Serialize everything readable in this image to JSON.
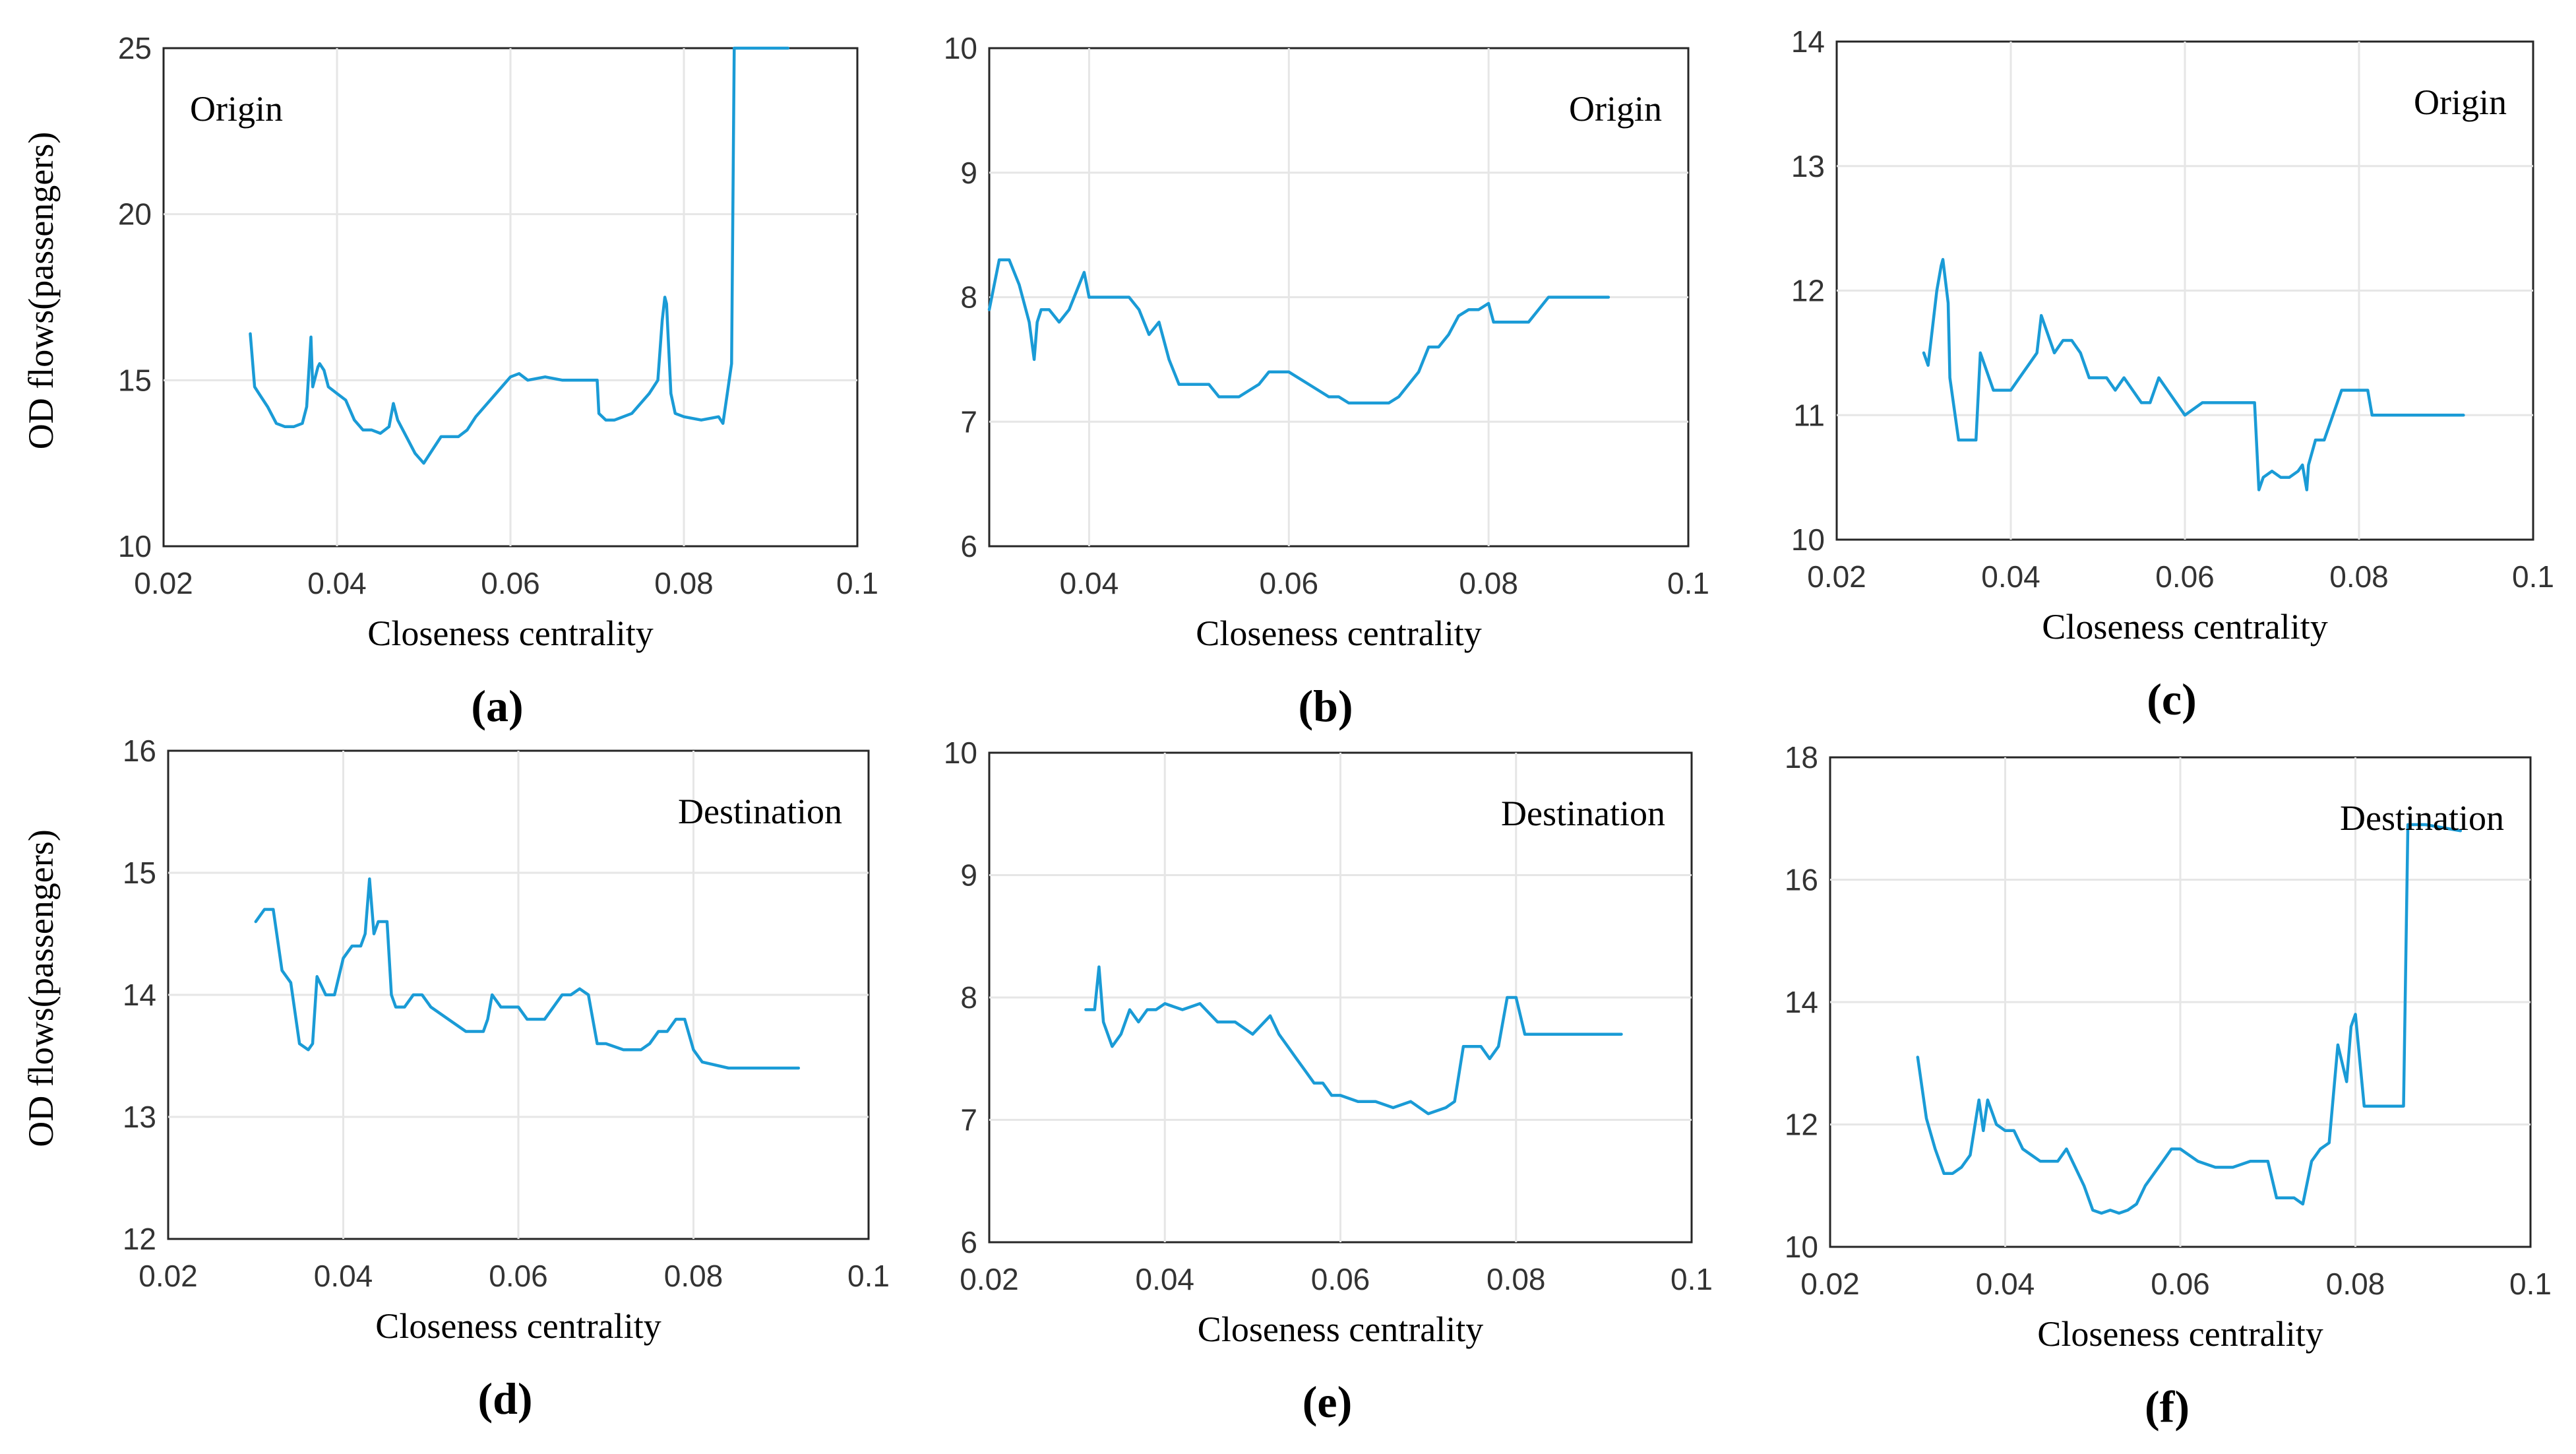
{
  "line_color": "#1a9bd6",
  "chart_data": [
    {
      "panel_label": "(a)",
      "type": "line",
      "annotation": "Origin",
      "annotation_position": "top-left",
      "xlabel": "Closeness centrality",
      "ylabel": "OD flows(passengers)",
      "xlim": [
        0.02,
        0.1
      ],
      "ylim": [
        10,
        25
      ],
      "xticks": [
        "0.02",
        "0.04",
        "0.06",
        "0.08",
        "0.1"
      ],
      "yticks": [
        "10",
        "15",
        "20",
        "25"
      ],
      "grid": true,
      "series": [
        {
          "x": [
            0.03,
            0.0305,
            0.031,
            0.032,
            0.033,
            0.034,
            0.035,
            0.036,
            0.0365,
            0.037,
            0.0372,
            0.0378,
            0.038,
            0.0385,
            0.039,
            0.04,
            0.041,
            0.042,
            0.043,
            0.044,
            0.045,
            0.046,
            0.0465,
            0.047,
            0.048,
            0.049,
            0.05,
            0.051,
            0.052,
            0.054,
            0.055,
            0.056,
            0.058,
            0.06,
            0.061,
            0.062,
            0.064,
            0.066,
            0.068,
            0.07,
            0.0702,
            0.071,
            0.072,
            0.074,
            0.076,
            0.0765,
            0.077,
            0.0775,
            0.0778,
            0.078,
            0.0785,
            0.079,
            0.08,
            0.082,
            0.084,
            0.0845,
            0.085,
            0.0855,
            0.0858,
            0.087,
            0.089,
            0.092
          ],
          "y": [
            16.4,
            14.8,
            14.6,
            14.2,
            13.7,
            13.6,
            13.6,
            13.7,
            14.2,
            16.3,
            14.8,
            15.4,
            15.5,
            15.3,
            14.8,
            14.6,
            14.4,
            13.8,
            13.5,
            13.5,
            13.4,
            13.6,
            14.3,
            13.8,
            13.3,
            12.8,
            12.5,
            12.9,
            13.3,
            13.3,
            13.5,
            13.9,
            14.5,
            15.1,
            15.2,
            15.0,
            15.1,
            15.0,
            15.0,
            15.0,
            14.0,
            13.8,
            13.8,
            14.0,
            14.6,
            14.8,
            15.0,
            16.8,
            17.5,
            17.3,
            14.6,
            14.0,
            13.9,
            13.8,
            13.9,
            13.7,
            14.6,
            15.5,
            25.0,
            25.0,
            25.0,
            25.0
          ]
        }
      ]
    },
    {
      "panel_label": "(b)",
      "type": "line",
      "annotation": "Origin",
      "annotation_position": "top-right",
      "xlabel": "Closeness centrality",
      "ylabel": "",
      "xlim": [
        0.03,
        0.1
      ],
      "ylim": [
        6,
        10
      ],
      "xticks": [
        "0.04",
        "0.06",
        "0.08",
        "0.1"
      ],
      "yticks": [
        "6",
        "7",
        "8",
        "9",
        "10"
      ],
      "grid": true,
      "series": [
        {
          "x": [
            0.03,
            0.031,
            0.032,
            0.033,
            0.034,
            0.0345,
            0.0348,
            0.0352,
            0.036,
            0.037,
            0.038,
            0.039,
            0.0395,
            0.04,
            0.041,
            0.042,
            0.044,
            0.045,
            0.046,
            0.047,
            0.048,
            0.049,
            0.05,
            0.052,
            0.053,
            0.055,
            0.057,
            0.058,
            0.06,
            0.062,
            0.064,
            0.065,
            0.066,
            0.068,
            0.07,
            0.071,
            0.072,
            0.073,
            0.074,
            0.075,
            0.076,
            0.077,
            0.078,
            0.079,
            0.08,
            0.0805,
            0.081,
            0.084,
            0.085,
            0.086,
            0.088,
            0.092
          ],
          "y": [
            7.9,
            8.3,
            8.3,
            8.1,
            7.8,
            7.5,
            7.8,
            7.9,
            7.9,
            7.8,
            7.9,
            8.1,
            8.2,
            8.0,
            8.0,
            8.0,
            8.0,
            7.9,
            7.7,
            7.8,
            7.5,
            7.3,
            7.3,
            7.3,
            7.2,
            7.2,
            7.3,
            7.4,
            7.4,
            7.3,
            7.2,
            7.2,
            7.15,
            7.15,
            7.15,
            7.2,
            7.3,
            7.4,
            7.6,
            7.6,
            7.7,
            7.85,
            7.9,
            7.9,
            7.95,
            7.8,
            7.8,
            7.8,
            7.9,
            8.0,
            8.0,
            8.0
          ]
        }
      ]
    },
    {
      "panel_label": "(c)",
      "type": "line",
      "annotation": "Origin",
      "annotation_position": "top-right",
      "xlabel": "Closeness centrality",
      "ylabel": "",
      "xlim": [
        0.02,
        0.1
      ],
      "ylim": [
        10,
        14
      ],
      "xticks": [
        "0.02",
        "0.04",
        "0.06",
        "0.08",
        "0.1"
      ],
      "yticks": [
        "10",
        "11",
        "12",
        "13",
        "14"
      ],
      "grid": true,
      "series": [
        {
          "x": [
            0.03,
            0.0305,
            0.031,
            0.0315,
            0.032,
            0.0322,
            0.0328,
            0.033,
            0.034,
            0.035,
            0.036,
            0.0365,
            0.037,
            0.038,
            0.039,
            0.04,
            0.041,
            0.042,
            0.043,
            0.0435,
            0.044,
            0.045,
            0.046,
            0.047,
            0.048,
            0.049,
            0.05,
            0.051,
            0.052,
            0.053,
            0.054,
            0.055,
            0.056,
            0.057,
            0.058,
            0.059,
            0.06,
            0.062,
            0.064,
            0.066,
            0.068,
            0.0685,
            0.069,
            0.07,
            0.071,
            0.072,
            0.073,
            0.0735,
            0.074,
            0.0742,
            0.075,
            0.076,
            0.077,
            0.078,
            0.079,
            0.08,
            0.081,
            0.0815,
            0.082,
            0.084,
            0.086,
            0.088,
            0.092
          ],
          "y": [
            11.5,
            11.4,
            11.7,
            12.0,
            12.2,
            12.25,
            11.9,
            11.3,
            10.8,
            10.8,
            10.8,
            11.5,
            11.4,
            11.2,
            11.2,
            11.2,
            11.3,
            11.4,
            11.5,
            11.8,
            11.7,
            11.5,
            11.6,
            11.6,
            11.5,
            11.3,
            11.3,
            11.3,
            11.2,
            11.3,
            11.2,
            11.1,
            11.1,
            11.3,
            11.2,
            11.1,
            11.0,
            11.1,
            11.1,
            11.1,
            11.1,
            10.4,
            10.5,
            10.55,
            10.5,
            10.5,
            10.55,
            10.6,
            10.4,
            10.6,
            10.8,
            10.8,
            11.0,
            11.2,
            11.2,
            11.2,
            11.2,
            11.0,
            11.0,
            11.0,
            11.0,
            11.0,
            11.0
          ]
        }
      ]
    },
    {
      "panel_label": "(d)",
      "type": "line",
      "annotation": "Destination",
      "annotation_position": "top-right",
      "xlabel": "Closeness centrality",
      "ylabel": "OD flows(passengers)",
      "xlim": [
        0.02,
        0.1
      ],
      "ylim": [
        12,
        16
      ],
      "xticks": [
        "0.02",
        "0.04",
        "0.06",
        "0.08",
        "0.1"
      ],
      "yticks": [
        "12",
        "13",
        "14",
        "15",
        "16"
      ],
      "grid": true,
      "series": [
        {
          "x": [
            0.03,
            0.031,
            0.032,
            0.033,
            0.034,
            0.035,
            0.036,
            0.0365,
            0.037,
            0.038,
            0.039,
            0.04,
            0.041,
            0.042,
            0.0425,
            0.043,
            0.0435,
            0.044,
            0.045,
            0.0455,
            0.046,
            0.047,
            0.048,
            0.049,
            0.05,
            0.052,
            0.054,
            0.056,
            0.0565,
            0.057,
            0.058,
            0.059,
            0.06,
            0.061,
            0.062,
            0.063,
            0.064,
            0.065,
            0.066,
            0.067,
            0.068,
            0.069,
            0.07,
            0.072,
            0.074,
            0.075,
            0.076,
            0.077,
            0.078,
            0.079,
            0.08,
            0.081,
            0.084,
            0.088,
            0.092
          ],
          "y": [
            14.6,
            14.7,
            14.7,
            14.2,
            14.1,
            13.6,
            13.55,
            13.6,
            14.15,
            14.0,
            14.0,
            14.3,
            14.4,
            14.4,
            14.5,
            14.95,
            14.5,
            14.6,
            14.6,
            14.0,
            13.9,
            13.9,
            14.0,
            14.0,
            13.9,
            13.8,
            13.7,
            13.7,
            13.8,
            14.0,
            13.9,
            13.9,
            13.9,
            13.8,
            13.8,
            13.8,
            13.9,
            14.0,
            14.0,
            14.05,
            14.0,
            13.6,
            13.6,
            13.55,
            13.55,
            13.6,
            13.7,
            13.7,
            13.8,
            13.8,
            13.55,
            13.45,
            13.4,
            13.4,
            13.4
          ]
        }
      ]
    },
    {
      "panel_label": "(e)",
      "type": "line",
      "annotation": "Destination",
      "annotation_position": "top-right",
      "xlabel": "Closeness centrality",
      "ylabel": "",
      "xlim": [
        0.02,
        0.1
      ],
      "ylim": [
        6,
        10
      ],
      "xticks": [
        "0.02",
        "0.04",
        "0.06",
        "0.08",
        "0.1"
      ],
      "yticks": [
        "6",
        "7",
        "8",
        "9",
        "10"
      ],
      "grid": true,
      "series": [
        {
          "x": [
            0.031,
            0.032,
            0.0325,
            0.033,
            0.034,
            0.035,
            0.036,
            0.037,
            0.038,
            0.039,
            0.04,
            0.042,
            0.044,
            0.046,
            0.048,
            0.05,
            0.052,
            0.053,
            0.054,
            0.055,
            0.056,
            0.057,
            0.058,
            0.059,
            0.06,
            0.062,
            0.064,
            0.066,
            0.068,
            0.07,
            0.072,
            0.073,
            0.074,
            0.075,
            0.076,
            0.077,
            0.078,
            0.079,
            0.08,
            0.081,
            0.084,
            0.088,
            0.092
          ],
          "y": [
            7.9,
            7.9,
            8.25,
            7.8,
            7.6,
            7.7,
            7.9,
            7.8,
            7.9,
            7.9,
            7.95,
            7.9,
            7.95,
            7.8,
            7.8,
            7.7,
            7.85,
            7.7,
            7.6,
            7.5,
            7.4,
            7.3,
            7.3,
            7.2,
            7.2,
            7.15,
            7.15,
            7.1,
            7.15,
            7.05,
            7.1,
            7.15,
            7.6,
            7.6,
            7.6,
            7.5,
            7.6,
            8.0,
            8.0,
            7.7,
            7.7,
            7.7,
            7.7
          ]
        }
      ]
    },
    {
      "panel_label": "(f)",
      "type": "line",
      "annotation": "Destination",
      "annotation_position": "top-right",
      "xlabel": "Closeness centrality",
      "ylabel": "",
      "xlim": [
        0.02,
        0.1
      ],
      "ylim": [
        10,
        18
      ],
      "xticks": [
        "0.02",
        "0.04",
        "0.06",
        "0.08",
        "0.1"
      ],
      "yticks": [
        "10",
        "12",
        "14",
        "16",
        "18"
      ],
      "grid": true,
      "series": [
        {
          "x": [
            0.03,
            0.031,
            0.032,
            0.033,
            0.034,
            0.035,
            0.036,
            0.037,
            0.0375,
            0.038,
            0.0385,
            0.039,
            0.04,
            0.041,
            0.042,
            0.043,
            0.044,
            0.046,
            0.047,
            0.048,
            0.049,
            0.05,
            0.051,
            0.052,
            0.053,
            0.054,
            0.055,
            0.056,
            0.057,
            0.058,
            0.059,
            0.06,
            0.062,
            0.064,
            0.066,
            0.068,
            0.07,
            0.071,
            0.072,
            0.073,
            0.074,
            0.075,
            0.076,
            0.077,
            0.0775,
            0.078,
            0.079,
            0.0795,
            0.08,
            0.081,
            0.085,
            0.0855,
            0.086,
            0.088,
            0.092
          ],
          "y": [
            13.1,
            12.1,
            11.6,
            11.2,
            11.2,
            11.3,
            11.5,
            12.4,
            11.9,
            12.4,
            12.2,
            12.0,
            11.9,
            11.9,
            11.6,
            11.5,
            11.4,
            11.4,
            11.6,
            11.3,
            11.0,
            10.6,
            10.55,
            10.6,
            10.55,
            10.6,
            10.7,
            11.0,
            11.2,
            11.4,
            11.6,
            11.6,
            11.4,
            11.3,
            11.3,
            11.4,
            11.4,
            10.8,
            10.8,
            10.8,
            10.7,
            11.4,
            11.6,
            11.7,
            12.5,
            13.3,
            12.7,
            13.6,
            13.8,
            12.3,
            12.3,
            12.3,
            16.9,
            16.9,
            16.8
          ]
        }
      ]
    }
  ]
}
